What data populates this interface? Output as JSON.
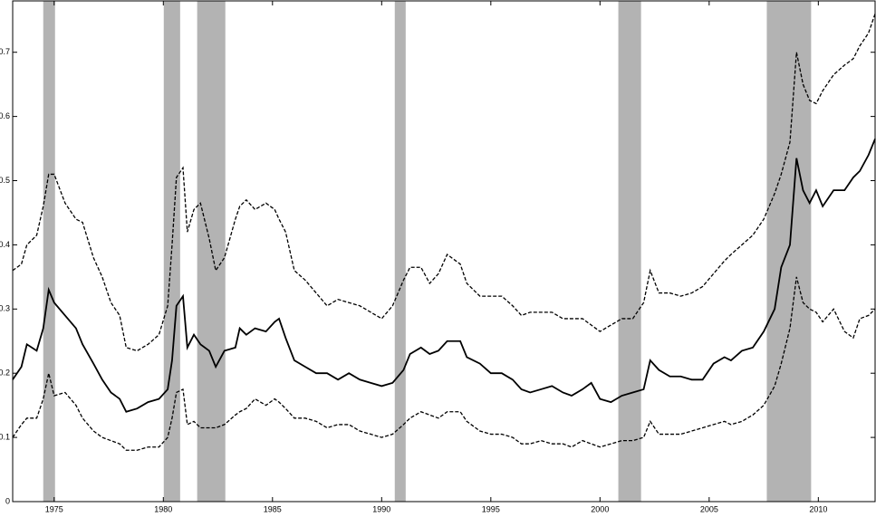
{
  "chart_data": {
    "type": "line",
    "xlim": [
      1973.1,
      2012.6
    ],
    "ylim": [
      0,
      0.78
    ],
    "xticks": [
      1975,
      1980,
      1985,
      1990,
      1995,
      2000,
      2005,
      2010
    ],
    "yticks": [
      0,
      0.1,
      0.2,
      0.3,
      0.4,
      0.5,
      0.6,
      0.7
    ],
    "band_color": "#b3b3b3",
    "bands": [
      [
        1974.5,
        1975.04
      ],
      [
        1980.02,
        1980.77
      ],
      [
        1981.55,
        1982.84
      ],
      [
        1990.6,
        1991.1
      ],
      [
        2000.84,
        2001.88
      ],
      [
        2007.64,
        2009.67
      ]
    ],
    "x": [
      1973.1,
      1973.5,
      1973.75,
      1974.2,
      1974.5,
      1974.75,
      1975.0,
      1975.5,
      1976.0,
      1976.3,
      1976.8,
      1977.2,
      1977.6,
      1978.0,
      1978.3,
      1978.8,
      1979.3,
      1979.8,
      1980.2,
      1980.4,
      1980.6,
      1980.9,
      1981.1,
      1981.4,
      1981.7,
      1982.1,
      1982.4,
      1982.8,
      1983.3,
      1983.5,
      1983.8,
      1984.2,
      1984.7,
      1985.1,
      1985.3,
      1985.6,
      1986.0,
      1986.5,
      1987.0,
      1987.5,
      1988.0,
      1988.5,
      1989.0,
      1989.5,
      1990.0,
      1990.5,
      1991.0,
      1991.3,
      1991.8,
      1992.2,
      1992.6,
      1993.0,
      1993.6,
      1993.9,
      1994.5,
      1995.0,
      1995.5,
      1996.0,
      1996.4,
      1996.8,
      1997.3,
      1997.8,
      1998.3,
      1998.7,
      1999.2,
      1999.6,
      2000.0,
      2000.5,
      2001.0,
      2001.5,
      2002.0,
      2002.3,
      2002.7,
      2003.2,
      2003.7,
      2004.2,
      2004.7,
      2005.2,
      2005.7,
      2006.0,
      2006.5,
      2007.0,
      2007.5,
      2008.0,
      2008.3,
      2008.7,
      2009.0,
      2009.3,
      2009.6,
      2009.9,
      2010.2,
      2010.7,
      2011.2,
      2011.6,
      2011.9,
      2012.3,
      2012.6
    ],
    "series": [
      {
        "color": "#000000",
        "dash": "dashed",
        "values": [
          0.36,
          0.37,
          0.4,
          0.415,
          0.46,
          0.51,
          0.51,
          0.465,
          0.44,
          0.435,
          0.38,
          0.35,
          0.31,
          0.29,
          0.24,
          0.235,
          0.245,
          0.26,
          0.305,
          0.4,
          0.505,
          0.52,
          0.42,
          0.455,
          0.465,
          0.41,
          0.36,
          0.38,
          0.44,
          0.46,
          0.47,
          0.455,
          0.465,
          0.455,
          0.44,
          0.42,
          0.36,
          0.345,
          0.325,
          0.305,
          0.315,
          0.31,
          0.305,
          0.295,
          0.285,
          0.305,
          0.345,
          0.365,
          0.365,
          0.34,
          0.355,
          0.385,
          0.37,
          0.34,
          0.32,
          0.32,
          0.32,
          0.305,
          0.29,
          0.295,
          0.295,
          0.295,
          0.285,
          0.285,
          0.285,
          0.275,
          0.265,
          0.275,
          0.285,
          0.285,
          0.31,
          0.36,
          0.325,
          0.325,
          0.32,
          0.325,
          0.335,
          0.355,
          0.375,
          0.385,
          0.4,
          0.415,
          0.44,
          0.48,
          0.51,
          0.56,
          0.7,
          0.65,
          0.625,
          0.62,
          0.64,
          0.665,
          0.68,
          0.69,
          0.71,
          0.73,
          0.76
        ]
      },
      {
        "color": "#000000",
        "dash": "solid",
        "values": [
          0.19,
          0.21,
          0.245,
          0.235,
          0.27,
          0.33,
          0.31,
          0.29,
          0.27,
          0.245,
          0.215,
          0.19,
          0.17,
          0.16,
          0.14,
          0.145,
          0.155,
          0.16,
          0.175,
          0.22,
          0.305,
          0.32,
          0.24,
          0.26,
          0.245,
          0.235,
          0.21,
          0.235,
          0.24,
          0.27,
          0.26,
          0.27,
          0.265,
          0.28,
          0.285,
          0.255,
          0.22,
          0.21,
          0.2,
          0.2,
          0.19,
          0.2,
          0.19,
          0.185,
          0.18,
          0.185,
          0.205,
          0.23,
          0.24,
          0.23,
          0.235,
          0.25,
          0.25,
          0.225,
          0.215,
          0.2,
          0.2,
          0.19,
          0.175,
          0.17,
          0.175,
          0.18,
          0.17,
          0.165,
          0.175,
          0.185,
          0.16,
          0.155,
          0.165,
          0.17,
          0.175,
          0.22,
          0.205,
          0.195,
          0.195,
          0.19,
          0.19,
          0.215,
          0.225,
          0.22,
          0.235,
          0.24,
          0.265,
          0.3,
          0.365,
          0.4,
          0.535,
          0.485,
          0.465,
          0.485,
          0.46,
          0.485,
          0.485,
          0.505,
          0.515,
          0.54,
          0.565
        ]
      },
      {
        "color": "#000000",
        "dash": "dashed",
        "values": [
          0.1,
          0.12,
          0.13,
          0.13,
          0.16,
          0.2,
          0.165,
          0.17,
          0.15,
          0.13,
          0.11,
          0.1,
          0.095,
          0.09,
          0.08,
          0.08,
          0.085,
          0.085,
          0.1,
          0.13,
          0.17,
          0.175,
          0.12,
          0.125,
          0.115,
          0.115,
          0.115,
          0.12,
          0.135,
          0.14,
          0.145,
          0.16,
          0.15,
          0.16,
          0.155,
          0.145,
          0.13,
          0.13,
          0.125,
          0.115,
          0.12,
          0.12,
          0.11,
          0.105,
          0.1,
          0.105,
          0.12,
          0.13,
          0.14,
          0.135,
          0.13,
          0.14,
          0.14,
          0.125,
          0.11,
          0.105,
          0.105,
          0.1,
          0.09,
          0.09,
          0.095,
          0.09,
          0.09,
          0.085,
          0.095,
          0.09,
          0.085,
          0.09,
          0.095,
          0.095,
          0.1,
          0.125,
          0.105,
          0.105,
          0.105,
          0.11,
          0.115,
          0.12,
          0.125,
          0.12,
          0.125,
          0.135,
          0.15,
          0.18,
          0.215,
          0.27,
          0.35,
          0.31,
          0.3,
          0.295,
          0.28,
          0.3,
          0.265,
          0.255,
          0.285,
          0.29,
          0.3
        ]
      }
    ]
  }
}
